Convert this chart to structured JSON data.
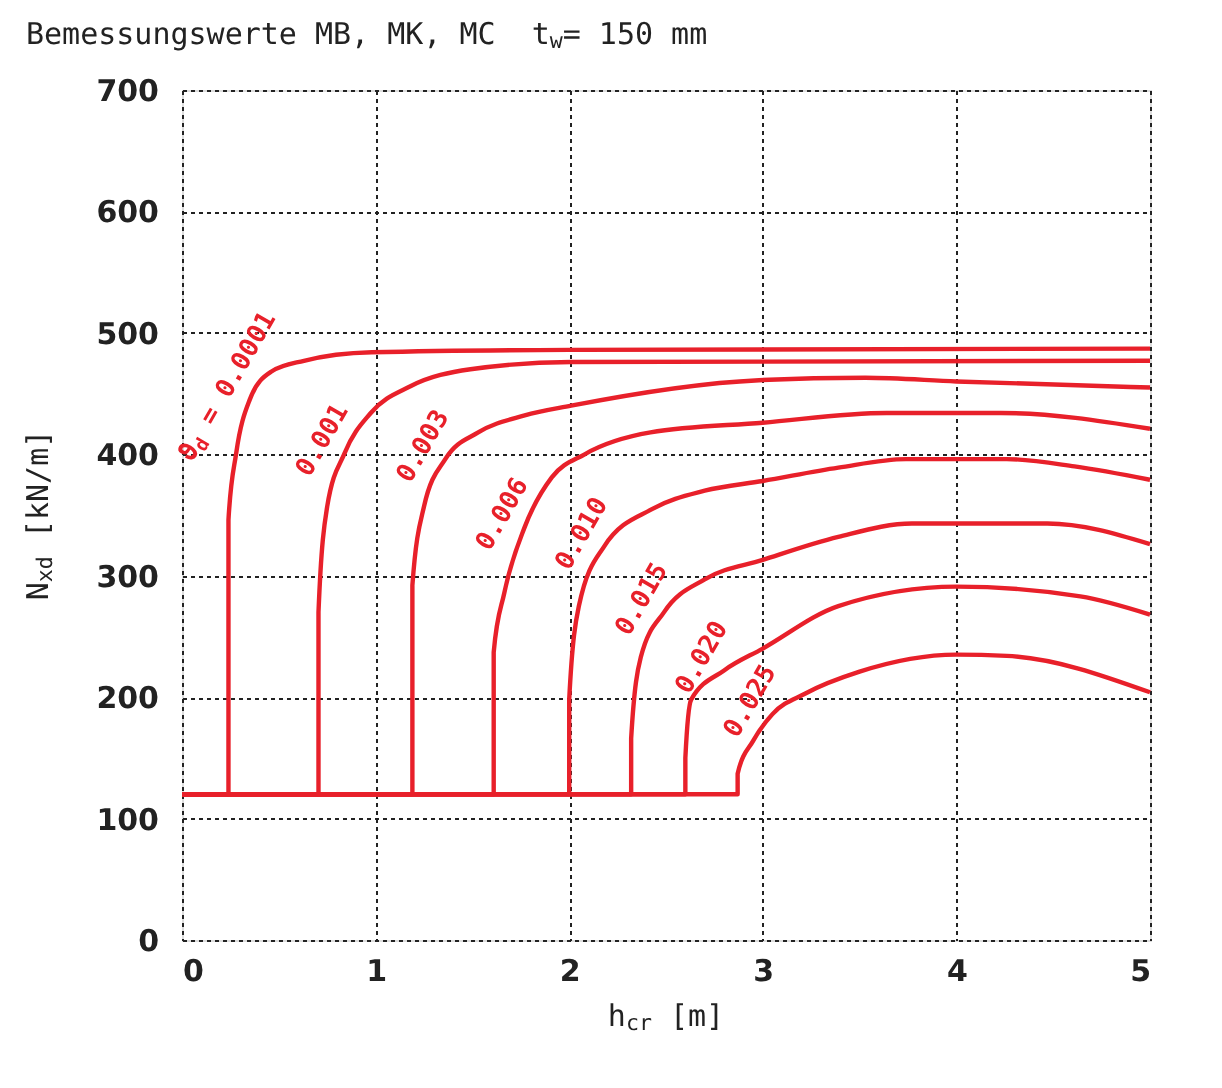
{
  "chart_data": {
    "type": "line",
    "title": "Bemessungswerte MB, MK, MC  t$_{w}$= 150 mm",
    "xlabel": "h$_{cr}$ [m]",
    "ylabel": "N$_{xd}$ [kN/m]",
    "xlim": [
      0,
      5
    ],
    "xticks": [
      0,
      1,
      2,
      3,
      4,
      5
    ],
    "ylim": [
      0,
      700
    ],
    "yticks": [
      0,
      100,
      200,
      300,
      400,
      500,
      600,
      700
    ],
    "grid": true,
    "line_style": "solid",
    "marker": "none",
    "series": [
      {
        "color": "#e8202a",
        "x": [
          0,
          0.24,
          0.24,
          0.28,
          0.35,
          0.46,
          0.63,
          0.98,
          2,
          5
        ],
        "values": [
          120,
          120,
          346,
          401,
          445,
          468,
          477,
          484,
          486,
          487
        ]
      },
      {
        "color": "#e8202a",
        "x": [
          0,
          0.705,
          0.705,
          0.75,
          0.84,
          0.975,
          1.18,
          1.49,
          2.01,
          5
        ],
        "values": [
          120,
          120,
          270,
          357,
          401,
          434,
          456,
          470,
          476,
          477
        ]
      },
      {
        "color": "#e8202a",
        "x": [
          0,
          1.19,
          1.19,
          1.25,
          1.36,
          1.53,
          1.77,
          2.01,
          2.98,
          3.53,
          4.0,
          5
        ],
        "values": [
          120,
          120,
          292,
          357,
          396,
          418,
          432,
          440,
          461,
          463,
          460,
          455
        ]
      },
      {
        "color": "#e8202a",
        "x": [
          0,
          1.61,
          1.61,
          1.665,
          1.77,
          1.91,
          2.08,
          2.42,
          3.0,
          3.64,
          4.23,
          5
        ],
        "values": [
          120,
          120,
          237,
          286,
          340,
          381,
          400,
          418,
          426,
          434,
          434,
          421
        ]
      },
      {
        "color": "#e8202a",
        "x": [
          0,
          2.0,
          2.0,
          2.05,
          2.18,
          2.43,
          2.7,
          3.0,
          3.39,
          3.74,
          4.26,
          4.61,
          5
        ],
        "values": [
          120,
          120,
          198,
          275,
          324,
          355,
          370,
          378,
          389,
          396,
          396,
          390,
          379
        ]
      },
      {
        "color": "#e8202a",
        "x": [
          0,
          2.32,
          2.32,
          2.37,
          2.49,
          2.7,
          3.0,
          3.39,
          3.77,
          4.47,
          5
        ],
        "values": [
          120,
          120,
          166,
          233,
          270,
          297,
          313,
          332,
          343,
          343,
          326
        ]
      },
      {
        "color": "#e8202a",
        "x": [
          0,
          2.6,
          2.6,
          2.63,
          2.8,
          3.0,
          3.39,
          4.0,
          4.64,
          5
        ],
        "values": [
          120,
          120,
          150,
          198,
          222,
          240,
          275,
          291,
          283,
          268
        ]
      },
      {
        "color": "#e8202a",
        "x": [
          0,
          2.87,
          2.87,
          2.95,
          3.05,
          3.22,
          3.5,
          4.0,
          4.26,
          5
        ],
        "values": [
          120,
          120,
          137,
          164,
          186,
          203,
          221,
          235,
          234,
          204
        ]
      }
    ],
    "annotations": [
      "ϑ$_{d}$ = 0.0001",
      "0.001",
      "0.003",
      "0.006",
      "0.010",
      "0.015",
      "0.020",
      "0.025"
    ]
  }
}
